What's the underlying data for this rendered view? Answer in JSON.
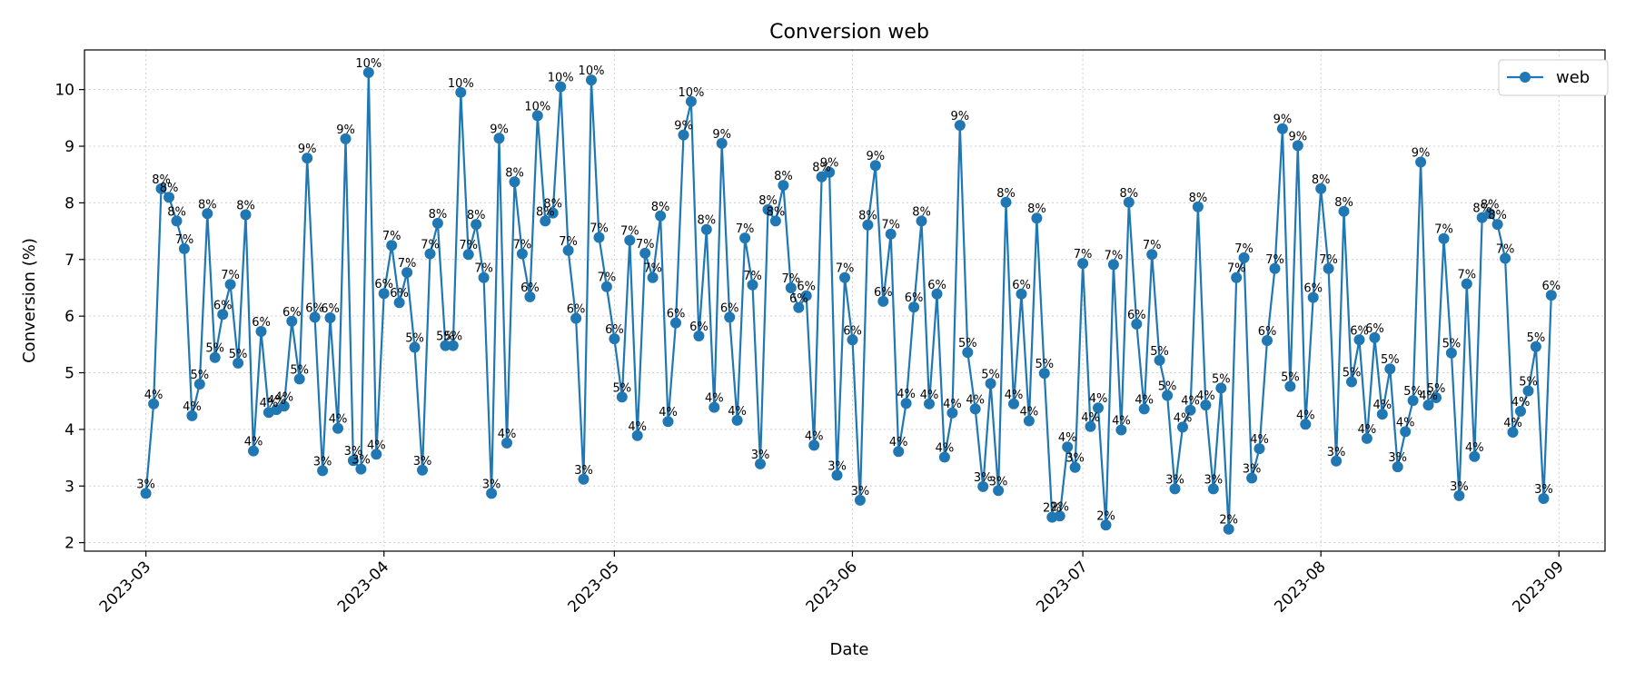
{
  "chart_data": {
    "type": "line",
    "title": "Conversion web",
    "xlabel": "Date",
    "ylabel": "Conversion (%)",
    "x_ticks": [
      "2023-03",
      "2023-04",
      "2023-05",
      "2023-06",
      "2023-07",
      "2023-08",
      "2023-09"
    ],
    "y_ticks": [
      2,
      3,
      4,
      5,
      6,
      7,
      8,
      9,
      10
    ],
    "ylim": [
      1.85,
      10.7
    ],
    "xlim": [
      "2023-02-21",
      "2023-09-07"
    ],
    "grid": true,
    "legend_position": "top-right",
    "series": [
      {
        "name": "web",
        "color": "#1f77b4",
        "x": [
          "2023-03-01",
          "2023-03-02",
          "2023-03-03",
          "2023-03-04",
          "2023-03-05",
          "2023-03-06",
          "2023-03-07",
          "2023-03-08",
          "2023-03-09",
          "2023-03-10",
          "2023-03-11",
          "2023-03-12",
          "2023-03-13",
          "2023-03-14",
          "2023-03-15",
          "2023-03-16",
          "2023-03-17",
          "2023-03-18",
          "2023-03-19",
          "2023-03-20",
          "2023-03-21",
          "2023-03-22",
          "2023-03-23",
          "2023-03-24",
          "2023-03-25",
          "2023-03-26",
          "2023-03-27",
          "2023-03-28",
          "2023-03-29",
          "2023-03-30",
          "2023-03-31",
          "2023-04-01",
          "2023-04-02",
          "2023-04-03",
          "2023-04-04",
          "2023-04-05",
          "2023-04-06",
          "2023-04-07",
          "2023-04-08",
          "2023-04-09",
          "2023-04-10",
          "2023-04-11",
          "2023-04-12",
          "2023-04-13",
          "2023-04-14",
          "2023-04-15",
          "2023-04-16",
          "2023-04-17",
          "2023-04-18",
          "2023-04-19",
          "2023-04-20",
          "2023-04-21",
          "2023-04-22",
          "2023-04-23",
          "2023-04-24",
          "2023-04-25",
          "2023-04-26",
          "2023-04-27",
          "2023-04-28",
          "2023-04-29",
          "2023-04-30",
          "2023-05-01",
          "2023-05-02",
          "2023-05-03",
          "2023-05-04",
          "2023-05-05",
          "2023-05-06",
          "2023-05-07",
          "2023-05-08",
          "2023-05-09",
          "2023-05-10",
          "2023-05-11",
          "2023-05-12",
          "2023-05-13",
          "2023-05-14",
          "2023-05-15",
          "2023-05-16",
          "2023-05-17",
          "2023-05-18",
          "2023-05-19",
          "2023-05-20",
          "2023-05-21",
          "2023-05-22",
          "2023-05-23",
          "2023-05-24",
          "2023-05-25",
          "2023-05-26",
          "2023-05-27",
          "2023-05-28",
          "2023-05-29",
          "2023-05-30",
          "2023-05-31",
          "2023-06-01",
          "2023-06-02",
          "2023-06-03",
          "2023-06-04",
          "2023-06-05",
          "2023-06-06",
          "2023-06-07",
          "2023-06-08",
          "2023-06-09",
          "2023-06-10",
          "2023-06-11",
          "2023-06-12",
          "2023-06-13",
          "2023-06-14",
          "2023-06-15",
          "2023-06-16",
          "2023-06-17",
          "2023-06-18",
          "2023-06-19",
          "2023-06-20",
          "2023-06-21",
          "2023-06-22",
          "2023-06-23",
          "2023-06-24",
          "2023-06-25",
          "2023-06-26",
          "2023-06-27",
          "2023-06-28",
          "2023-06-29",
          "2023-06-30",
          "2023-07-01",
          "2023-07-02",
          "2023-07-03",
          "2023-07-04",
          "2023-07-05",
          "2023-07-06",
          "2023-07-07",
          "2023-07-08",
          "2023-07-09",
          "2023-07-10",
          "2023-07-11",
          "2023-07-12",
          "2023-07-13",
          "2023-07-14",
          "2023-07-15",
          "2023-07-16",
          "2023-07-17",
          "2023-07-18",
          "2023-07-19",
          "2023-07-20",
          "2023-07-21",
          "2023-07-22",
          "2023-07-23",
          "2023-07-24",
          "2023-07-25",
          "2023-07-26",
          "2023-07-27",
          "2023-07-28",
          "2023-07-29",
          "2023-07-30",
          "2023-07-31",
          "2023-08-01",
          "2023-08-02",
          "2023-08-03",
          "2023-08-04",
          "2023-08-05",
          "2023-08-06",
          "2023-08-07",
          "2023-08-08",
          "2023-08-09",
          "2023-08-10",
          "2023-08-11",
          "2023-08-12",
          "2023-08-13",
          "2023-08-14",
          "2023-08-15",
          "2023-08-16",
          "2023-08-17",
          "2023-08-18",
          "2023-08-19",
          "2023-08-20",
          "2023-08-21",
          "2023-08-22",
          "2023-08-23",
          "2023-08-24",
          "2023-08-25",
          "2023-08-26",
          "2023-08-27",
          "2023-08-28",
          "2023-08-29",
          "2023-08-30",
          "2023-08-31"
        ],
        "values": [
          2.87,
          4.45,
          8.25,
          8.1,
          7.68,
          7.19,
          4.24,
          4.8,
          7.81,
          5.27,
          6.03,
          6.56,
          5.17,
          7.79,
          3.62,
          5.73,
          4.3,
          4.35,
          4.41,
          5.91,
          4.89,
          8.79,
          5.98,
          3.27,
          5.97,
          4.02,
          9.13,
          3.45,
          3.3,
          10.3,
          3.56,
          6.4,
          7.25,
          6.24,
          6.77,
          5.45,
          3.28,
          7.1,
          7.64,
          5.48,
          5.48,
          9.95,
          7.09,
          7.62,
          6.68,
          2.87,
          9.14,
          3.76,
          8.37,
          7.1,
          6.34,
          9.54,
          7.68,
          7.82,
          10.05,
          7.16,
          5.96,
          3.12,
          10.17,
          7.39,
          6.52,
          5.6,
          4.57,
          7.34,
          3.89,
          7.11,
          6.68,
          7.77,
          4.14,
          5.88,
          9.2,
          9.79,
          5.65,
          7.53,
          4.39,
          9.05,
          5.98,
          4.16,
          7.38,
          6.55,
          3.39,
          7.88,
          7.68,
          8.31,
          6.5,
          6.15,
          6.36,
          3.72,
          8.46,
          8.54,
          3.19,
          6.68,
          5.58,
          2.75,
          7.61,
          8.66,
          6.26,
          7.45,
          3.61,
          4.46,
          6.16,
          7.68,
          4.45,
          6.39,
          3.51,
          4.29,
          9.37,
          5.36,
          4.36,
          2.99,
          4.81,
          2.92,
          8.01,
          4.45,
          6.39,
          4.15,
          7.73,
          4.99,
          2.45,
          2.47,
          3.69,
          3.33,
          6.93,
          4.05,
          4.38,
          2.31,
          6.91,
          3.99,
          8.01,
          5.86,
          4.36,
          7.09,
          5.22,
          4.6,
          2.95,
          4.04,
          4.34,
          7.93,
          4.43,
          2.95,
          4.73,
          2.24,
          6.68,
          7.03,
          3.14,
          3.66,
          5.57,
          6.84,
          9.31,
          4.76,
          9.01,
          4.09,
          6.33,
          8.25,
          6.84,
          3.44,
          7.85,
          4.84,
          5.58,
          3.84,
          5.62,
          4.27,
          5.07,
          3.34,
          3.96,
          4.51,
          8.72,
          4.43,
          4.56,
          7.37,
          5.35,
          2.83,
          6.57,
          3.52,
          7.74,
          7.81,
          7.62,
          7.02,
          3.95,
          4.32,
          4.68,
          5.46,
          2.78,
          6.37
        ]
      }
    ]
  }
}
